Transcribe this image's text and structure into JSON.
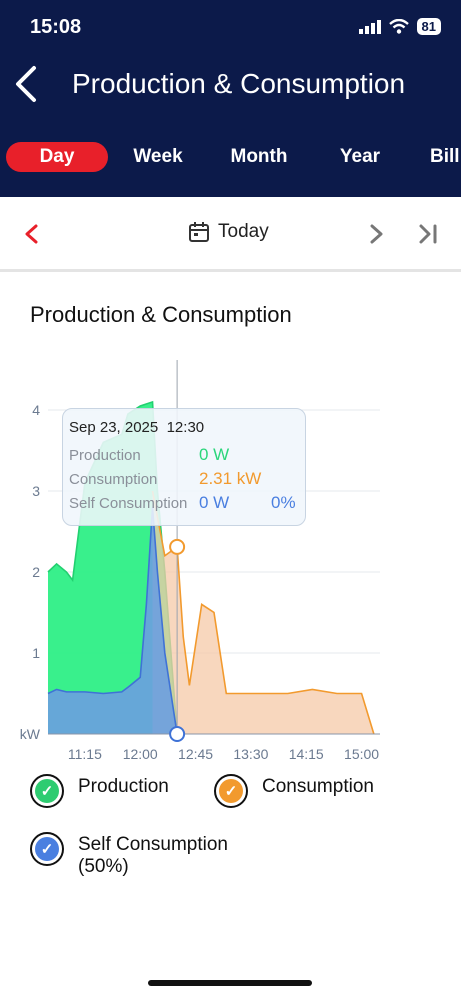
{
  "status_bar": {
    "time": "15:08",
    "battery": "81"
  },
  "header": {
    "title": "Production & Consumption"
  },
  "tabs": [
    {
      "label": "Day",
      "active": true
    },
    {
      "label": "Week"
    },
    {
      "label": "Month"
    },
    {
      "label": "Year"
    },
    {
      "label": "Bill"
    }
  ],
  "date_nav": {
    "label": "Today"
  },
  "card": {
    "title": "Production & Consumption"
  },
  "chart_data": {
    "type": "area",
    "y_unit": "kW",
    "y_ticks": [
      "1",
      "2",
      "3",
      "4"
    ],
    "x_ticks": [
      "11:15",
      "12:00",
      "12:45",
      "13:30",
      "14:15",
      "15:00"
    ],
    "ylim": [
      0,
      4
    ],
    "series": [
      {
        "name": "Production",
        "color": "#2eef86",
        "x": [
          "10:45",
          "10:52",
          "11:00",
          "11:05",
          "11:15",
          "11:30",
          "11:45",
          "11:50",
          "12:00",
          "12:10",
          "12:14",
          "12:20",
          "12:30"
        ],
        "y": [
          2.0,
          2.1,
          2.0,
          1.9,
          3.1,
          3.6,
          3.7,
          3.95,
          4.05,
          4.1,
          3.0,
          2.0,
          0
        ]
      },
      {
        "name": "Consumption",
        "color": "#f29a2e",
        "x": [
          "12:10",
          "12:15",
          "12:20",
          "12:30",
          "12:35",
          "12:40",
          "12:50",
          "13:00",
          "13:10",
          "13:20",
          "13:40",
          "14:00",
          "14:20",
          "14:40",
          "15:00",
          "15:10"
        ],
        "y": [
          3.0,
          2.6,
          2.2,
          2.31,
          1.2,
          0.6,
          1.6,
          1.5,
          0.5,
          0.5,
          0.5,
          0.5,
          0.55,
          0.5,
          0.5,
          0
        ]
      },
      {
        "name": "Self Consumption",
        "color": "#6b9ee0",
        "x": [
          "10:45",
          "10:52",
          "11:00",
          "11:15",
          "11:30",
          "11:45",
          "11:52",
          "12:00",
          "12:05",
          "12:10",
          "12:14",
          "12:20",
          "12:30"
        ],
        "y": [
          0.5,
          0.55,
          0.52,
          0.52,
          0.5,
          0.52,
          0.6,
          0.7,
          1.6,
          2.8,
          2.0,
          1.0,
          0
        ]
      }
    ],
    "cursor_time": "12:30",
    "tooltip": {
      "date": "Sep 23, 2025",
      "time": "12:30",
      "production_label": "Production",
      "production_value": "0 W",
      "consumption_label": "Consumption",
      "consumption_value": "2.31 kW",
      "self_label": "Self Consumption",
      "self_value": "0 W",
      "self_percent": "0%"
    }
  },
  "legend": [
    {
      "label": "Production",
      "color": "#2ecc71"
    },
    {
      "label": "Consumption",
      "color": "#f29a2e"
    },
    {
      "label": "Self Consumption",
      "sub": "(50%)",
      "color": "#4a7fe0"
    }
  ]
}
